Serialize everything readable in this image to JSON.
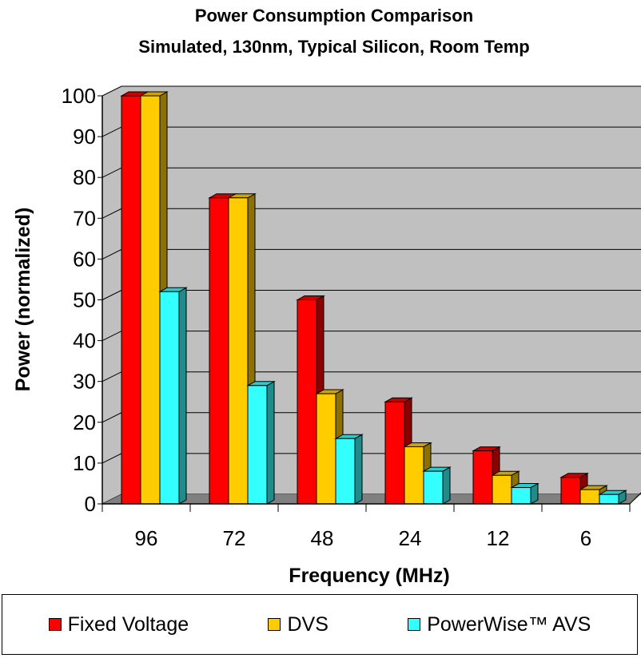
{
  "chart_data": {
    "type": "bar",
    "title": "Power Consumption Comparison",
    "subtitle": "Simulated, 130nm, Typical Silicon, Room Temp",
    "xlabel": "Frequency (MHz)",
    "ylabel": "Power (normalized)",
    "categories": [
      "96",
      "72",
      "48",
      "24",
      "12",
      "6"
    ],
    "ylim": [
      0,
      100
    ],
    "yticks": [
      "0",
      "10",
      "20",
      "30",
      "40",
      "50",
      "60",
      "70",
      "80",
      "90",
      "100"
    ],
    "grid": true,
    "legend_position": "bottom",
    "series": [
      {
        "name": "Fixed Voltage",
        "color": "#ff0000",
        "values": [
          100,
          75,
          50,
          25,
          13,
          6.5
        ]
      },
      {
        "name": "DVS",
        "color": "#ffcc00",
        "values": [
          100,
          75,
          27,
          14,
          7,
          3.5
        ]
      },
      {
        "name": "PowerWise™ AVS",
        "color": "#33ffff",
        "values": [
          52,
          29,
          16,
          8,
          4,
          2.3
        ]
      }
    ]
  }
}
